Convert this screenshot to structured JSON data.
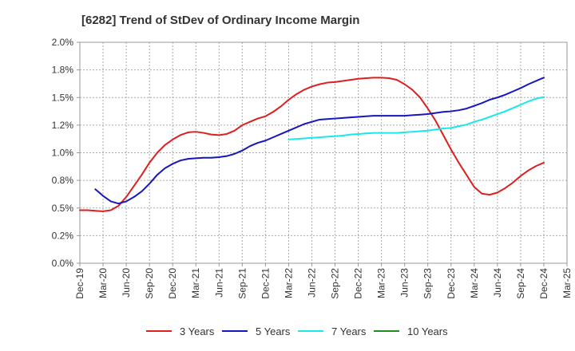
{
  "chart_data": {
    "type": "line",
    "title": "[6282]  Trend of StDev of Ordinary Income Margin",
    "xlabel": "",
    "ylabel": "",
    "x_ticks": [
      "Dec-19",
      "Mar-20",
      "Jun-20",
      "Sep-20",
      "Dec-20",
      "Mar-21",
      "Jun-21",
      "Sep-21",
      "Dec-21",
      "Mar-22",
      "Jun-22",
      "Sep-22",
      "Dec-22",
      "Mar-23",
      "Jun-23",
      "Sep-23",
      "Dec-23",
      "Mar-24",
      "Jun-24",
      "Sep-24",
      "Dec-24",
      "Mar-25"
    ],
    "y_ticks": [
      "0.0%",
      "0.2%",
      "0.5%",
      "0.8%",
      "1.0%",
      "1.2%",
      "1.5%",
      "1.8%",
      "2.0%"
    ],
    "y_tick_values": [
      0,
      0.25,
      0.5,
      0.75,
      1.0,
      1.25,
      1.5,
      1.75,
      2.0
    ],
    "ylim": [
      0,
      2.0
    ],
    "grid": true,
    "legend_position": "bottom",
    "series": [
      {
        "name": "3 Years",
        "color": "#dd1f1f",
        "points": [
          [
            "Dec-19",
            0.48
          ],
          [
            "Jan-20",
            0.48
          ],
          [
            "Feb-20",
            0.475
          ],
          [
            "Mar-20",
            0.47
          ],
          [
            "Apr-20",
            0.48
          ],
          [
            "May-20",
            0.52
          ],
          [
            "Jun-20",
            0.6
          ],
          [
            "Jul-20",
            0.7
          ],
          [
            "Aug-20",
            0.8
          ],
          [
            "Sep-20",
            0.91
          ],
          [
            "Oct-20",
            1.0
          ],
          [
            "Nov-20",
            1.07
          ],
          [
            "Dec-20",
            1.12
          ],
          [
            "Jan-21",
            1.16
          ],
          [
            "Feb-21",
            1.185
          ],
          [
            "Mar-21",
            1.19
          ],
          [
            "Apr-21",
            1.18
          ],
          [
            "May-21",
            1.165
          ],
          [
            "Jun-21",
            1.16
          ],
          [
            "Jul-21",
            1.17
          ],
          [
            "Aug-21",
            1.2
          ],
          [
            "Sep-21",
            1.25
          ],
          [
            "Oct-21",
            1.28
          ],
          [
            "Nov-21",
            1.31
          ],
          [
            "Dec-21",
            1.33
          ],
          [
            "Jan-22",
            1.37
          ],
          [
            "Feb-22",
            1.42
          ],
          [
            "Mar-22",
            1.48
          ],
          [
            "Apr-22",
            1.53
          ],
          [
            "May-22",
            1.57
          ],
          [
            "Jun-22",
            1.6
          ],
          [
            "Jul-22",
            1.62
          ],
          [
            "Aug-22",
            1.635
          ],
          [
            "Sep-22",
            1.64
          ],
          [
            "Oct-22",
            1.65
          ],
          [
            "Nov-22",
            1.66
          ],
          [
            "Dec-22",
            1.67
          ],
          [
            "Jan-23",
            1.675
          ],
          [
            "Feb-23",
            1.68
          ],
          [
            "Mar-23",
            1.68
          ],
          [
            "Apr-23",
            1.675
          ],
          [
            "May-23",
            1.66
          ],
          [
            "Jun-23",
            1.62
          ],
          [
            "Jul-23",
            1.57
          ],
          [
            "Aug-23",
            1.5
          ],
          [
            "Sep-23",
            1.4
          ],
          [
            "Oct-23",
            1.29
          ],
          [
            "Nov-23",
            1.16
          ],
          [
            "Dec-23",
            1.03
          ],
          [
            "Jan-24",
            0.91
          ],
          [
            "Feb-24",
            0.8
          ],
          [
            "Mar-24",
            0.69
          ],
          [
            "Apr-24",
            0.63
          ],
          [
            "May-24",
            0.62
          ],
          [
            "Jun-24",
            0.64
          ],
          [
            "Jul-24",
            0.68
          ],
          [
            "Aug-24",
            0.73
          ],
          [
            "Sep-24",
            0.79
          ],
          [
            "Oct-24",
            0.84
          ],
          [
            "Nov-24",
            0.88
          ],
          [
            "Dec-24",
            0.91
          ]
        ]
      },
      {
        "name": "5 Years",
        "color": "#1616c0",
        "points": [
          [
            "Feb-20",
            0.67
          ],
          [
            "Mar-20",
            0.61
          ],
          [
            "Apr-20",
            0.56
          ],
          [
            "May-20",
            0.54
          ],
          [
            "Jun-20",
            0.56
          ],
          [
            "Jul-20",
            0.6
          ],
          [
            "Aug-20",
            0.65
          ],
          [
            "Sep-20",
            0.72
          ],
          [
            "Oct-20",
            0.8
          ],
          [
            "Nov-20",
            0.86
          ],
          [
            "Dec-20",
            0.9
          ],
          [
            "Jan-21",
            0.93
          ],
          [
            "Feb-21",
            0.945
          ],
          [
            "Mar-21",
            0.95
          ],
          [
            "Apr-21",
            0.955
          ],
          [
            "May-21",
            0.955
          ],
          [
            "Jun-21",
            0.96
          ],
          [
            "Jul-21",
            0.97
          ],
          [
            "Aug-21",
            0.99
          ],
          [
            "Sep-21",
            1.02
          ],
          [
            "Oct-21",
            1.06
          ],
          [
            "Nov-21",
            1.09
          ],
          [
            "Dec-21",
            1.11
          ],
          [
            "Jan-22",
            1.14
          ],
          [
            "Feb-22",
            1.17
          ],
          [
            "Mar-22",
            1.2
          ],
          [
            "Apr-22",
            1.23
          ],
          [
            "May-22",
            1.26
          ],
          [
            "Jun-22",
            1.28
          ],
          [
            "Jul-22",
            1.3
          ],
          [
            "Aug-22",
            1.305
          ],
          [
            "Sep-22",
            1.31
          ],
          [
            "Oct-22",
            1.315
          ],
          [
            "Nov-22",
            1.32
          ],
          [
            "Dec-22",
            1.325
          ],
          [
            "Jan-23",
            1.33
          ],
          [
            "Feb-23",
            1.335
          ],
          [
            "Mar-23",
            1.335
          ],
          [
            "Apr-23",
            1.335
          ],
          [
            "May-23",
            1.335
          ],
          [
            "Jun-23",
            1.335
          ],
          [
            "Jul-23",
            1.34
          ],
          [
            "Aug-23",
            1.345
          ],
          [
            "Sep-23",
            1.35
          ],
          [
            "Oct-23",
            1.36
          ],
          [
            "Nov-23",
            1.37
          ],
          [
            "Dec-23",
            1.375
          ],
          [
            "Jan-24",
            1.385
          ],
          [
            "Feb-24",
            1.4
          ],
          [
            "Mar-24",
            1.425
          ],
          [
            "Apr-24",
            1.45
          ],
          [
            "May-24",
            1.48
          ],
          [
            "Jun-24",
            1.5
          ],
          [
            "Jul-24",
            1.525
          ],
          [
            "Aug-24",
            1.555
          ],
          [
            "Sep-24",
            1.585
          ],
          [
            "Oct-24",
            1.62
          ],
          [
            "Nov-24",
            1.65
          ],
          [
            "Dec-24",
            1.68
          ]
        ]
      },
      {
        "name": "7 Years",
        "color": "#18e8e8",
        "points": [
          [
            "Mar-22",
            1.12
          ],
          [
            "Apr-22",
            1.125
          ],
          [
            "May-22",
            1.13
          ],
          [
            "Jun-22",
            1.135
          ],
          [
            "Jul-22",
            1.14
          ],
          [
            "Aug-22",
            1.145
          ],
          [
            "Sep-22",
            1.15
          ],
          [
            "Oct-22",
            1.155
          ],
          [
            "Nov-22",
            1.165
          ],
          [
            "Dec-22",
            1.17
          ],
          [
            "Jan-23",
            1.175
          ],
          [
            "Feb-23",
            1.18
          ],
          [
            "Mar-23",
            1.18
          ],
          [
            "Apr-23",
            1.18
          ],
          [
            "May-23",
            1.18
          ],
          [
            "Jun-23",
            1.185
          ],
          [
            "Jul-23",
            1.19
          ],
          [
            "Aug-23",
            1.195
          ],
          [
            "Sep-23",
            1.2
          ],
          [
            "Oct-23",
            1.21
          ],
          [
            "Nov-23",
            1.22
          ],
          [
            "Dec-23",
            1.225
          ],
          [
            "Jan-24",
            1.24
          ],
          [
            "Feb-24",
            1.255
          ],
          [
            "Mar-24",
            1.28
          ],
          [
            "Apr-24",
            1.3
          ],
          [
            "May-24",
            1.325
          ],
          [
            "Jun-24",
            1.35
          ],
          [
            "Jul-24",
            1.375
          ],
          [
            "Aug-24",
            1.405
          ],
          [
            "Sep-24",
            1.435
          ],
          [
            "Oct-24",
            1.465
          ],
          [
            "Nov-24",
            1.49
          ],
          [
            "Dec-24",
            1.505
          ]
        ]
      },
      {
        "name": "10 Years",
        "color": "#1e8c1e",
        "points": []
      }
    ]
  }
}
